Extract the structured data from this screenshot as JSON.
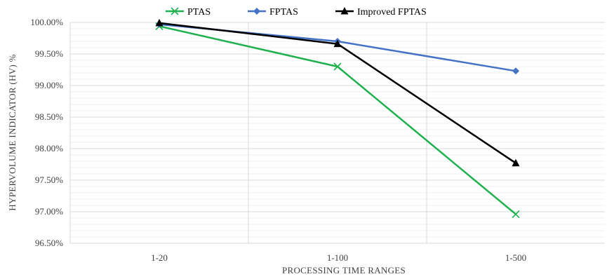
{
  "chart_data": {
    "type": "line",
    "title": "",
    "xlabel": "PROCESSING TIME RANGES",
    "ylabel": "HYPERVOLUME INDICATOR (HV)  %",
    "categories": [
      "1-20",
      "1-100",
      "1-500"
    ],
    "ylim": [
      96.5,
      100
    ],
    "ytick_step": 0.5,
    "ytick_labels": [
      "96.50%",
      "97.00%",
      "97.50%",
      "98.00%",
      "98.50%",
      "99.00%",
      "99.50%",
      "100.00%"
    ],
    "grid": true,
    "legend_position": "top",
    "series": [
      {
        "name": "PTAS",
        "values": [
          99.94,
          99.3,
          96.96
        ],
        "color": "#1fb04f",
        "marker": "x"
      },
      {
        "name": "FPTAS",
        "values": [
          99.97,
          99.7,
          99.23
        ],
        "color": "#4472c4",
        "marker": "diamond"
      },
      {
        "name": "Improved FPTAS",
        "values": [
          99.99,
          99.66,
          97.77
        ],
        "color": "#000000",
        "marker": "triangle"
      }
    ]
  }
}
